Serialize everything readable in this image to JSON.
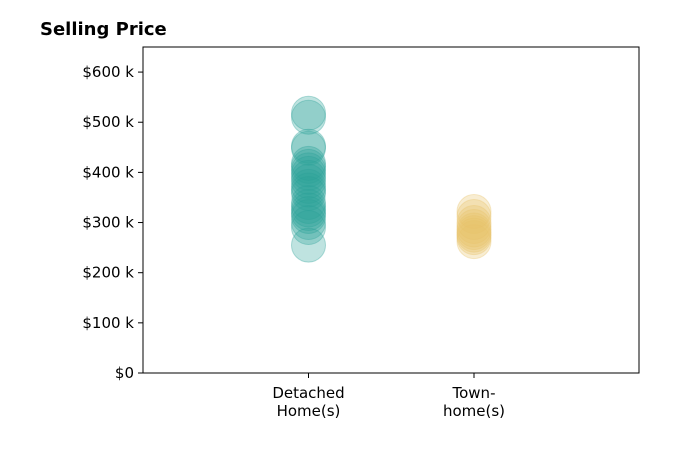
{
  "chart_data": {
    "type": "scatter",
    "title": "Selling Price",
    "xlabel": "",
    "ylabel": "",
    "ylim": [
      0,
      650000
    ],
    "yticks": [
      0,
      100000,
      200000,
      300000,
      400000,
      500000,
      600000
    ],
    "ytick_labels": [
      "$0",
      "$100 k",
      "$200 k",
      "$300 k",
      "$400 k",
      "$500 k",
      "$600 k"
    ],
    "categories": [
      "Detached\nHome(s)",
      "Town-\nhome(s)"
    ],
    "grid": false,
    "legend": "none",
    "series": [
      {
        "category": "Detached\nHome(s)",
        "color": "#2aa198",
        "values": [
          518000,
          510000,
          452000,
          448000,
          418000,
          412000,
          405000,
          398000,
          390000,
          382000,
          372000,
          365000,
          358000,
          340000,
          332000,
          325000,
          318000,
          312000,
          300000,
          290000,
          255000
        ]
      },
      {
        "category": "Town-\nhome(s)",
        "color": "#e9c46a",
        "values": [
          322000,
          312000,
          300000,
          292000,
          285000,
          280000,
          275000,
          270000,
          262000
        ]
      }
    ]
  }
}
